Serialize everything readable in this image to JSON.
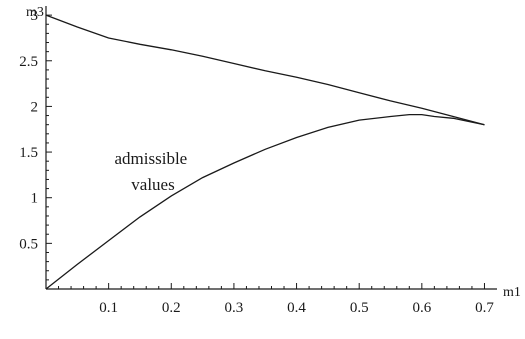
{
  "chart_data": {
    "type": "line",
    "xlabel": "m1",
    "ylabel": "m3",
    "xlim": [
      0,
      0.72
    ],
    "ylim": [
      0,
      3.1
    ],
    "xticks": [
      0.1,
      0.2,
      0.3,
      0.4,
      0.5,
      0.6,
      0.7
    ],
    "xtick_labels": [
      "0.1",
      "0.2",
      "0.3",
      "0.4",
      "0.5",
      "0.6",
      "0.7"
    ],
    "yticks": [
      0.5,
      1,
      1.5,
      2,
      2.5,
      3
    ],
    "ytick_labels": [
      "0.5",
      "1",
      "1.5",
      "2",
      "2.5",
      "3"
    ],
    "annotation": [
      "admissible",
      "values"
    ],
    "grid": false,
    "series": [
      {
        "x": [
          0,
          0.05,
          0.1,
          0.15,
          0.2,
          0.25,
          0.3,
          0.35,
          0.4,
          0.45,
          0.5,
          0.55,
          0.6,
          0.65,
          0.7
        ],
        "y": [
          3.0,
          2.87,
          2.75,
          2.68,
          2.62,
          2.55,
          2.47,
          2.39,
          2.32,
          2.24,
          2.15,
          2.06,
          1.98,
          1.89,
          1.8
        ]
      },
      {
        "x": [
          0,
          0.05,
          0.1,
          0.15,
          0.2,
          0.25,
          0.3,
          0.35,
          0.4,
          0.45,
          0.5,
          0.55,
          0.58,
          0.6,
          0.62,
          0.65,
          0.7
        ],
        "y": [
          0.0,
          0.27,
          0.53,
          0.79,
          1.02,
          1.22,
          1.38,
          1.53,
          1.66,
          1.77,
          1.85,
          1.89,
          1.91,
          1.91,
          1.89,
          1.87,
          1.8
        ]
      }
    ]
  }
}
